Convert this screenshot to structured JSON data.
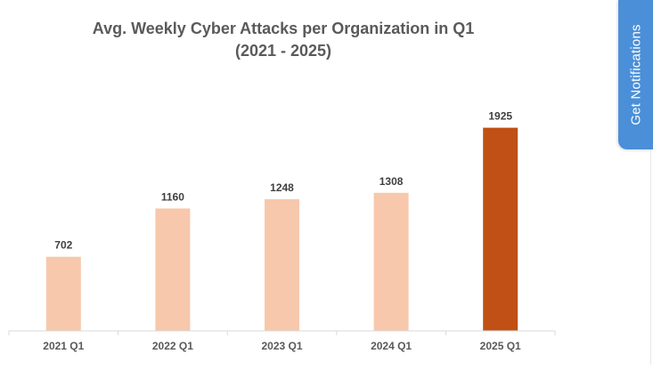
{
  "notifications": {
    "label": "Get Notifications"
  },
  "colors": {
    "bar_default": "#f7c8ac",
    "bar_highlight": "#c05016",
    "axis": "#d9d9d9",
    "notify_tab": "#4a8fd8"
  },
  "chart_data": {
    "type": "bar",
    "title": "Avg. Weekly Cyber Attacks per Organization in Q1",
    "subtitle": "(2021 - 2025)",
    "categories": [
      "2021 Q1",
      "2022 Q1",
      "2023 Q1",
      "2024 Q1",
      "2025 Q1"
    ],
    "values": [
      702,
      1160,
      1248,
      1308,
      1925
    ],
    "value_labels": [
      "702",
      "1160",
      "1248",
      "1308",
      "1925"
    ],
    "highlight_index": 4,
    "xlabel": "",
    "ylabel": "",
    "ylim": [
      0,
      2200
    ],
    "grid": false,
    "legend": "none"
  }
}
